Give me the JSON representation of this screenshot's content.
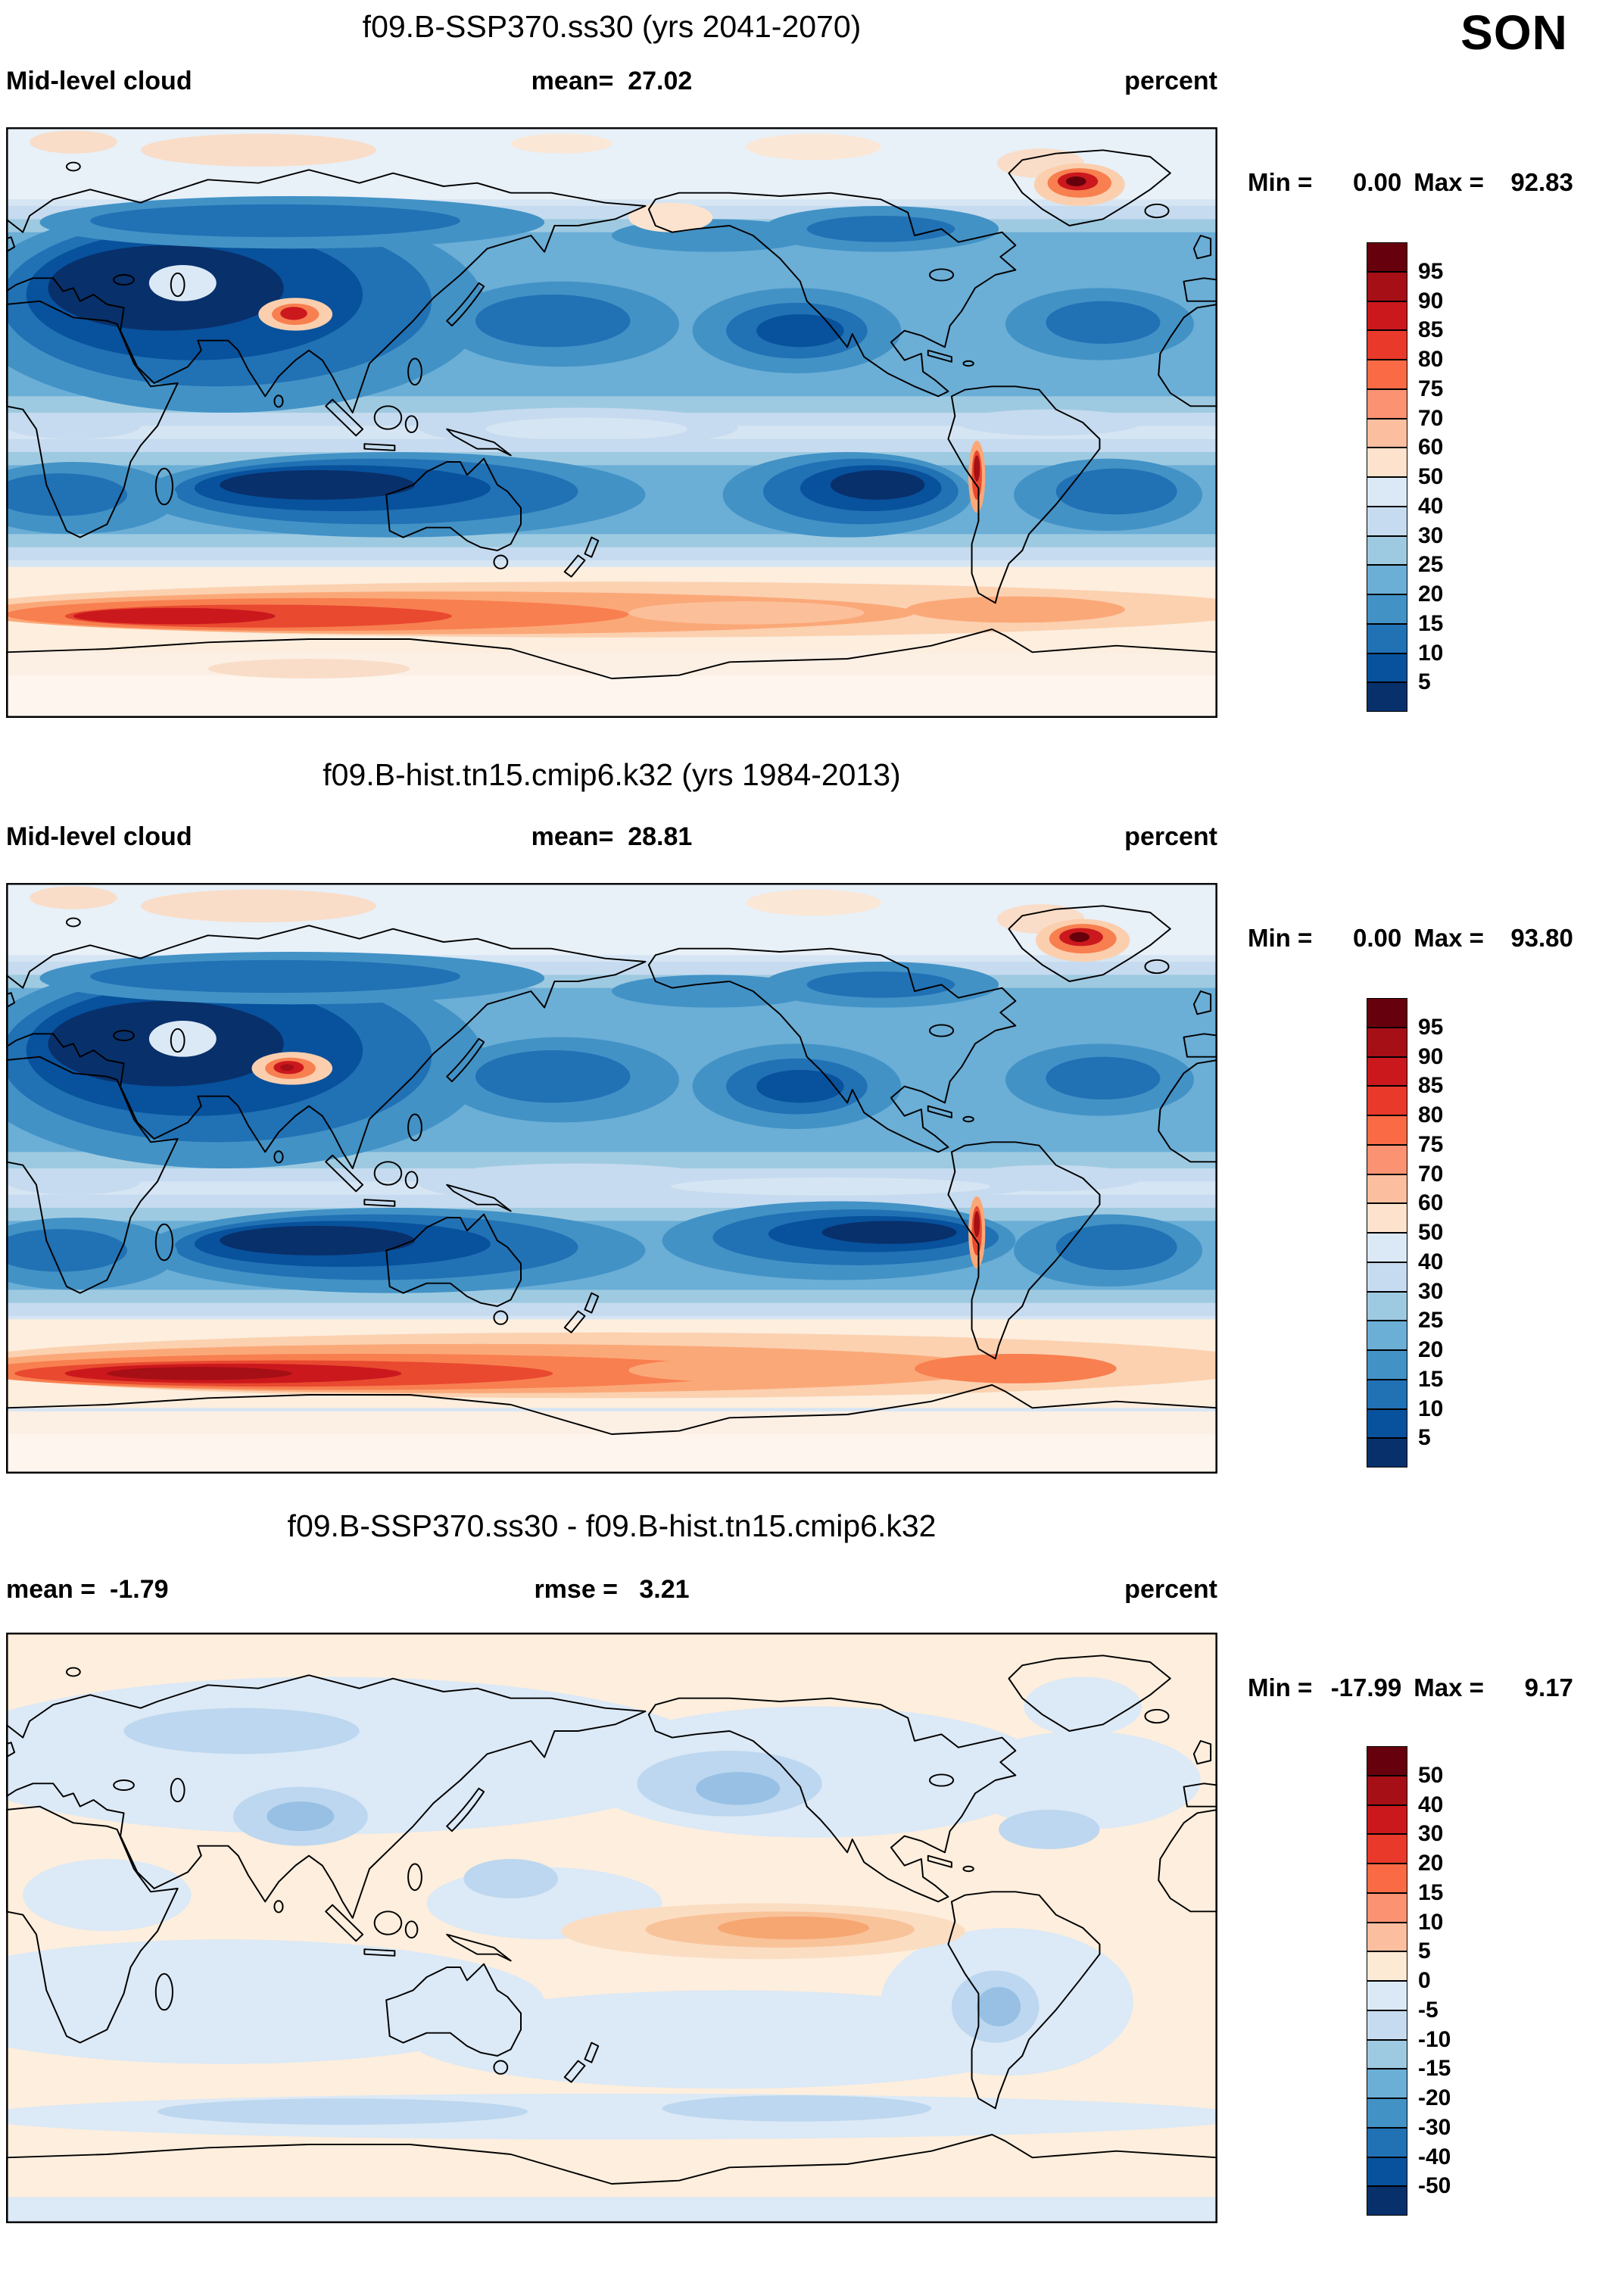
{
  "season_label": "SON",
  "panels": [
    {
      "title": "f09.B-SSP370.ss30 (yrs 2041-2070)",
      "subtitle_left": "Mid-level cloud",
      "subtitle_center": "mean=  27.02",
      "subtitle_right": "percent",
      "min_label": "Min =",
      "min_value": "0.00",
      "max_label": "Max =",
      "max_value": "92.83"
    },
    {
      "title": "f09.B-hist.tn15.cmip6.k32 (yrs 1984-2013)",
      "subtitle_left": "Mid-level cloud",
      "subtitle_center": "mean=  28.81",
      "subtitle_right": "percent",
      "min_label": "Min =",
      "min_value": "0.00",
      "max_label": "Max =",
      "max_value": "93.80"
    },
    {
      "title": "f09.B-SSP370.ss30 - f09.B-hist.tn15.cmip6.k32",
      "subtitle_left": "mean =  -1.79",
      "subtitle_center": "rmse =   3.21",
      "subtitle_right": "percent",
      "min_label": "Min =",
      "min_value": "-17.99",
      "max_label": "Max =",
      "max_value": "9.17"
    }
  ],
  "colorbar_clim": {
    "labels": [
      "95",
      "90",
      "85",
      "80",
      "75",
      "70",
      "60",
      "50",
      "40",
      "30",
      "25",
      "20",
      "15",
      "10",
      "5"
    ],
    "colors": [
      "#67000d",
      "#a50f15",
      "#cb181d",
      "#e8392a",
      "#f96a45",
      "#fb9272",
      "#fbbfa0",
      "#fde3cd",
      "#dbe9f6",
      "#c6dbef",
      "#9ecae1",
      "#6baed6",
      "#4292c6",
      "#2171b5",
      "#08519c",
      "#08306b"
    ]
  },
  "colorbar_diff": {
    "labels": [
      "50",
      "40",
      "30",
      "20",
      "15",
      "10",
      "5",
      "0",
      "-5",
      "-10",
      "-15",
      "-20",
      "-30",
      "-40",
      "-50"
    ],
    "colors": [
      "#67000d",
      "#a50f15",
      "#cb181d",
      "#e8392a",
      "#f96a45",
      "#fb9272",
      "#fbbfa0",
      "#fdead5",
      "#dbe9f6",
      "#c6dbef",
      "#9ecae1",
      "#6baed6",
      "#4292c6",
      "#2171b5",
      "#08519c",
      "#08306b"
    ]
  },
  "chart_data": [
    {
      "type": "heatmap",
      "map_type": "global filled-contour map",
      "title": "f09.B-SSP370.ss30 (yrs 2041-2070)",
      "variable": "Mid-level cloud",
      "units": "percent",
      "season": "SON",
      "lon_range": [
        0,
        360
      ],
      "lat_range": [
        -90,
        90
      ],
      "stats": {
        "mean": 27.02,
        "min": 0.0,
        "max": 92.83
      },
      "contour_levels": [
        5,
        10,
        15,
        20,
        25,
        30,
        40,
        50,
        60,
        70,
        75,
        80,
        85,
        90,
        95
      ],
      "palette_ref": "colorbar_clim",
      "legend_position": "right"
    },
    {
      "type": "heatmap",
      "map_type": "global filled-contour map",
      "title": "f09.B-hist.tn15.cmip6.k32 (yrs 1984-2013)",
      "variable": "Mid-level cloud",
      "units": "percent",
      "season": "SON",
      "lon_range": [
        0,
        360
      ],
      "lat_range": [
        -90,
        90
      ],
      "stats": {
        "mean": 28.81,
        "min": 0.0,
        "max": 93.8
      },
      "contour_levels": [
        5,
        10,
        15,
        20,
        25,
        30,
        40,
        50,
        60,
        70,
        75,
        80,
        85,
        90,
        95
      ],
      "palette_ref": "colorbar_clim",
      "legend_position": "right"
    },
    {
      "type": "heatmap",
      "map_type": "global filled-contour difference map",
      "title": "f09.B-SSP370.ss30 - f09.B-hist.tn15.cmip6.k32",
      "variable": "Mid-level cloud",
      "units": "percent",
      "season": "SON",
      "lon_range": [
        0,
        360
      ],
      "lat_range": [
        -90,
        90
      ],
      "stats": {
        "mean": -1.79,
        "rmse": 3.21,
        "min": -17.99,
        "max": 9.17
      },
      "contour_levels": [
        -50,
        -40,
        -30,
        -20,
        -15,
        -10,
        -5,
        0,
        5,
        10,
        15,
        20,
        30,
        40,
        50
      ],
      "palette_ref": "colorbar_diff",
      "legend_position": "right"
    }
  ]
}
